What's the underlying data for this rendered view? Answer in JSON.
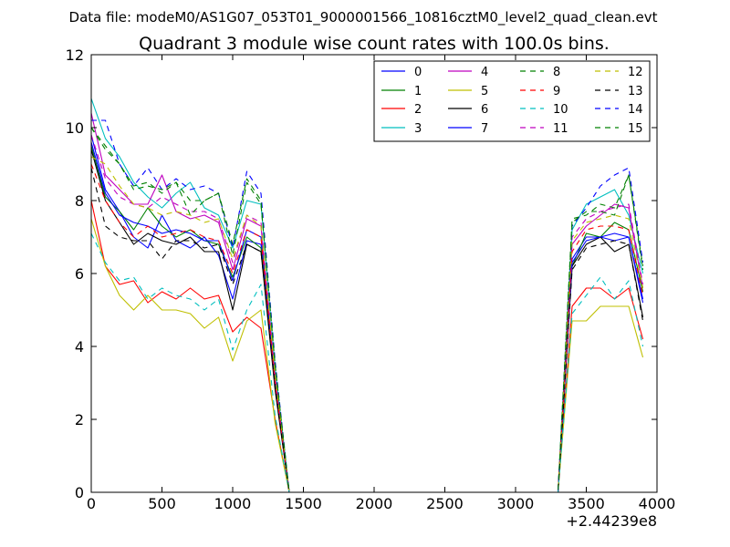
{
  "chart_data": {
    "type": "line",
    "suptitle": "Data file: modeM0/AS1G07_053T01_9000001566_10816cztM0_level2_quad_clean.evt",
    "title": "Quadrant 3 module wise count rates with 100.0s bins.",
    "xlabel": "",
    "ylabel": "",
    "x_offset_label": "+2.44239e8",
    "xlim": [
      0,
      4000
    ],
    "ylim": [
      0,
      12
    ],
    "xticks": [
      0,
      500,
      1000,
      1500,
      2000,
      2500,
      3000,
      3500,
      4000
    ],
    "yticks": [
      0,
      2,
      4,
      6,
      8,
      10,
      12
    ],
    "x": [
      0,
      100,
      200,
      300,
      400,
      500,
      600,
      700,
      800,
      900,
      1000,
      1100,
      1200,
      1300,
      1400,
      1500,
      1600,
      1700,
      1800,
      1900,
      2000,
      2100,
      2200,
      2300,
      2400,
      2500,
      2600,
      2700,
      2800,
      2900,
      3000,
      3100,
      3200,
      3300,
      3400,
      3500,
      3600,
      3700,
      3800,
      3900
    ],
    "legend_position": "top-right",
    "series": [
      {
        "name": "0",
        "color": "#0000ff",
        "dash": "solid",
        "values": [
          9.8,
          8.3,
          7.7,
          7.0,
          6.7,
          7.6,
          6.9,
          6.7,
          7.0,
          6.5,
          5.3,
          6.9,
          6.8,
          3.0,
          0,
          0,
          0,
          0,
          0,
          0,
          0,
          0,
          0,
          0,
          0,
          0,
          0,
          0,
          0,
          0,
          0,
          0,
          0,
          0,
          6.4,
          7.0,
          7.0,
          6.9,
          7.0,
          5.2
        ]
      },
      {
        "name": "1",
        "color": "#008000",
        "dash": "solid",
        "values": [
          9.5,
          8.1,
          7.7,
          7.2,
          7.8,
          7.3,
          7.0,
          7.2,
          6.9,
          6.8,
          5.9,
          7.0,
          6.7,
          2.9,
          0,
          0,
          0,
          0,
          0,
          0,
          0,
          0,
          0,
          0,
          0,
          0,
          0,
          0,
          0,
          0,
          0,
          0,
          0,
          0,
          6.2,
          7.1,
          7.0,
          7.4,
          7.2,
          5.5
        ]
      },
      {
        "name": "2",
        "color": "#ff0000",
        "dash": "solid",
        "values": [
          8.0,
          6.2,
          5.7,
          5.8,
          5.2,
          5.5,
          5.3,
          5.6,
          5.3,
          5.4,
          4.4,
          4.8,
          4.5,
          2.0,
          0,
          0,
          0,
          0,
          0,
          0,
          0,
          0,
          0,
          0,
          0,
          0,
          0,
          0,
          0,
          0,
          0,
          0,
          0,
          0,
          5.1,
          5.6,
          5.6,
          5.3,
          5.6,
          4.2
        ]
      },
      {
        "name": "3",
        "color": "#00bfbf",
        "dash": "solid",
        "values": [
          10.8,
          9.7,
          9.2,
          8.5,
          8.1,
          7.8,
          8.2,
          8.5,
          7.8,
          7.6,
          6.7,
          8.0,
          7.9,
          3.4,
          0,
          0,
          0,
          0,
          0,
          0,
          0,
          0,
          0,
          0,
          0,
          0,
          0,
          0,
          0,
          0,
          0,
          0,
          0,
          0,
          7.2,
          7.9,
          8.1,
          8.3,
          7.6,
          6.0
        ]
      },
      {
        "name": "4",
        "color": "#bf00bf",
        "dash": "solid",
        "values": [
          10.4,
          8.7,
          8.3,
          7.9,
          7.9,
          8.7,
          7.7,
          7.5,
          7.6,
          7.4,
          6.1,
          7.5,
          7.3,
          3.1,
          0,
          0,
          0,
          0,
          0,
          0,
          0,
          0,
          0,
          0,
          0,
          0,
          0,
          0,
          0,
          0,
          0,
          0,
          0,
          0,
          6.8,
          7.3,
          7.6,
          7.9,
          7.8,
          5.6
        ]
      },
      {
        "name": "5",
        "color": "#bfbf00",
        "dash": "solid",
        "values": [
          7.5,
          6.2,
          5.4,
          5.0,
          5.4,
          5.0,
          5.0,
          4.9,
          4.5,
          4.8,
          3.6,
          4.7,
          5.0,
          1.9,
          0,
          0,
          0,
          0,
          0,
          0,
          0,
          0,
          0,
          0,
          0,
          0,
          0,
          0,
          0,
          0,
          0,
          0,
          0,
          0,
          4.7,
          4.7,
          5.1,
          5.1,
          5.1,
          3.7
        ]
      },
      {
        "name": "6",
        "color": "#000000",
        "dash": "solid",
        "values": [
          9.4,
          8.0,
          7.4,
          6.8,
          7.1,
          6.9,
          6.8,
          7.0,
          6.6,
          6.6,
          5.0,
          6.8,
          6.6,
          2.8,
          0,
          0,
          0,
          0,
          0,
          0,
          0,
          0,
          0,
          0,
          0,
          0,
          0,
          0,
          0,
          0,
          0,
          0,
          0,
          0,
          6.2,
          6.8,
          7.0,
          6.6,
          6.8,
          4.8
        ]
      },
      {
        "name": "7",
        "color": "#0000ff",
        "dash": "solid",
        "values": [
          9.6,
          8.2,
          7.6,
          7.4,
          7.3,
          7.1,
          7.2,
          7.1,
          6.9,
          6.9,
          5.8,
          7.2,
          7.0,
          3.0,
          0,
          0,
          0,
          0,
          0,
          0,
          0,
          0,
          0,
          0,
          0,
          0,
          0,
          0,
          0,
          0,
          0,
          0,
          0,
          0,
          6.3,
          6.9,
          7.0,
          7.1,
          7.0,
          5.3
        ]
      },
      {
        "name": "8",
        "color": "#008000",
        "dash": "dashed",
        "values": [
          10.0,
          9.5,
          9.0,
          8.4,
          8.5,
          8.2,
          8.5,
          8.0,
          8.0,
          8.2,
          6.5,
          8.5,
          7.9,
          3.5,
          0,
          0,
          0,
          0,
          0,
          0,
          0,
          0,
          0,
          0,
          0,
          0,
          0,
          0,
          0,
          0,
          0,
          0,
          0,
          0,
          7.5,
          7.6,
          7.9,
          7.8,
          8.7,
          6.2
        ]
      },
      {
        "name": "9",
        "color": "#ff0000",
        "dash": "dashed",
        "values": [
          9.0,
          8.0,
          7.4,
          7.0,
          7.3,
          7.0,
          7.1,
          7.2,
          7.0,
          6.9,
          6.0,
          7.2,
          7.0,
          3.0,
          0,
          0,
          0,
          0,
          0,
          0,
          0,
          0,
          0,
          0,
          0,
          0,
          0,
          0,
          0,
          0,
          0,
          0,
          0,
          0,
          6.6,
          7.2,
          7.3,
          7.3,
          7.2,
          5.4
        ]
      },
      {
        "name": "10",
        "color": "#00bfbf",
        "dash": "dashed",
        "values": [
          7.1,
          6.3,
          5.8,
          5.9,
          5.3,
          5.6,
          5.4,
          5.3,
          5.0,
          5.3,
          3.9,
          5.0,
          5.7,
          2.1,
          0,
          0,
          0,
          0,
          0,
          0,
          0,
          0,
          0,
          0,
          0,
          0,
          0,
          0,
          0,
          0,
          0,
          0,
          0,
          0,
          4.9,
          5.4,
          5.9,
          5.3,
          5.8,
          4.0
        ]
      },
      {
        "name": "11",
        "color": "#bf00bf",
        "dash": "dashed",
        "values": [
          9.8,
          8.6,
          8.1,
          7.9,
          7.8,
          8.1,
          7.9,
          7.7,
          7.7,
          7.5,
          6.3,
          7.6,
          7.4,
          3.2,
          0,
          0,
          0,
          0,
          0,
          0,
          0,
          0,
          0,
          0,
          0,
          0,
          0,
          0,
          0,
          0,
          0,
          0,
          0,
          0,
          7.0,
          7.5,
          7.7,
          7.8,
          7.9,
          5.7
        ]
      },
      {
        "name": "12",
        "color": "#bfbf00",
        "dash": "dashed",
        "values": [
          9.2,
          9.0,
          8.4,
          7.9,
          7.8,
          7.6,
          7.7,
          7.6,
          7.4,
          7.5,
          6.4,
          7.6,
          7.3,
          3.2,
          0,
          0,
          0,
          0,
          0,
          0,
          0,
          0,
          0,
          0,
          0,
          0,
          0,
          0,
          0,
          0,
          0,
          0,
          0,
          0,
          6.9,
          7.4,
          7.5,
          7.6,
          7.5,
          5.6
        ]
      },
      {
        "name": "13",
        "color": "#000000",
        "dash": "dashed",
        "values": [
          8.9,
          7.3,
          7.0,
          6.9,
          6.9,
          6.4,
          6.9,
          6.9,
          6.7,
          6.8,
          5.7,
          6.8,
          6.6,
          2.9,
          0,
          0,
          0,
          0,
          0,
          0,
          0,
          0,
          0,
          0,
          0,
          0,
          0,
          0,
          0,
          0,
          0,
          0,
          0,
          0,
          6.1,
          6.7,
          6.8,
          6.9,
          6.8,
          4.7
        ]
      },
      {
        "name": "14",
        "color": "#0000ff",
        "dash": "dashed",
        "values": [
          10.2,
          10.2,
          9.0,
          8.4,
          8.9,
          8.3,
          8.6,
          8.3,
          8.4,
          8.2,
          6.7,
          8.8,
          8.2,
          3.6,
          0,
          0,
          0,
          0,
          0,
          0,
          0,
          0,
          0,
          0,
          0,
          0,
          0,
          0,
          0,
          0,
          0,
          0,
          0,
          0,
          7.3,
          7.8,
          8.4,
          8.7,
          8.9,
          6.3
        ]
      },
      {
        "name": "15",
        "color": "#008000",
        "dash": "dashed",
        "values": [
          10.0,
          9.4,
          9.0,
          8.3,
          8.4,
          8.3,
          8.5,
          7.6,
          8.0,
          8.2,
          6.8,
          8.6,
          8.0,
          3.5,
          0,
          0,
          0,
          0,
          0,
          0,
          0,
          0,
          0,
          0,
          0,
          0,
          0,
          0,
          0,
          0,
          0,
          0,
          0,
          0,
          7.4,
          7.7,
          7.7,
          7.6,
          8.7,
          6.1
        ]
      }
    ]
  }
}
